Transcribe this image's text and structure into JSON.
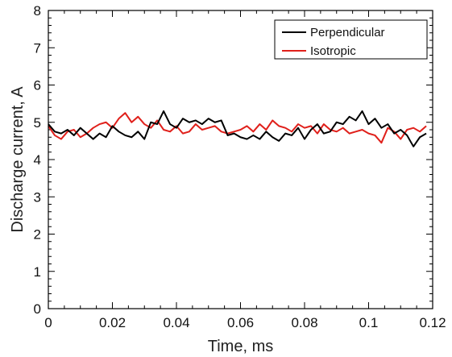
{
  "chart_data": {
    "type": "line",
    "xlabel": "Time, ms",
    "ylabel": "Discharge current, A",
    "xlim": [
      0,
      0.12
    ],
    "ylim": [
      0,
      8
    ],
    "x_ticks": [
      "0",
      "0.02",
      "0.04",
      "0.06",
      "0.08",
      "0.1",
      "0.12"
    ],
    "y_ticks": [
      "0",
      "1",
      "2",
      "3",
      "4",
      "5",
      "6",
      "7",
      "8"
    ],
    "grid": false,
    "legend_position": "top-right",
    "x": [
      0,
      0.002,
      0.004,
      0.006,
      0.008,
      0.01,
      0.012,
      0.014,
      0.016,
      0.018,
      0.02,
      0.022,
      0.024,
      0.026,
      0.028,
      0.03,
      0.032,
      0.034,
      0.036,
      0.038,
      0.04,
      0.042,
      0.044,
      0.046,
      0.048,
      0.05,
      0.052,
      0.054,
      0.056,
      0.058,
      0.06,
      0.062,
      0.064,
      0.066,
      0.068,
      0.07,
      0.072,
      0.074,
      0.076,
      0.078,
      0.08,
      0.082,
      0.084,
      0.086,
      0.088,
      0.09,
      0.092,
      0.094,
      0.096,
      0.098,
      0.1,
      0.102,
      0.104,
      0.106,
      0.108,
      0.11,
      0.112,
      0.114,
      0.116,
      0.118
    ],
    "series": [
      {
        "name": "Perpendicular",
        "color": "#000000",
        "values": [
          4.95,
          4.75,
          4.7,
          4.8,
          4.65,
          4.85,
          4.7,
          4.55,
          4.7,
          4.6,
          4.9,
          4.75,
          4.65,
          4.6,
          4.75,
          4.55,
          5.0,
          4.95,
          5.3,
          4.95,
          4.85,
          5.1,
          5.0,
          5.05,
          4.95,
          5.1,
          5.0,
          5.05,
          4.65,
          4.7,
          4.6,
          4.55,
          4.65,
          4.55,
          4.75,
          4.6,
          4.5,
          4.7,
          4.65,
          4.85,
          4.55,
          4.8,
          4.95,
          4.7,
          4.75,
          5.0,
          4.95,
          5.15,
          5.05,
          5.3,
          4.95,
          5.1,
          4.85,
          4.95,
          4.7,
          4.8,
          4.65,
          4.35,
          4.6,
          4.7
        ]
      },
      {
        "name": "Isotropic",
        "color": "#e0201b",
        "values": [
          4.9,
          4.65,
          4.55,
          4.75,
          4.8,
          4.6,
          4.7,
          4.85,
          4.95,
          5.0,
          4.85,
          5.1,
          5.25,
          5.0,
          5.15,
          4.95,
          4.85,
          5.05,
          4.8,
          4.75,
          4.9,
          4.7,
          4.75,
          4.95,
          4.8,
          4.85,
          4.9,
          4.75,
          4.7,
          4.75,
          4.8,
          4.9,
          4.75,
          4.95,
          4.8,
          5.05,
          4.9,
          4.85,
          4.75,
          4.95,
          4.85,
          4.9,
          4.7,
          4.95,
          4.8,
          4.75,
          4.85,
          4.7,
          4.75,
          4.8,
          4.7,
          4.65,
          4.45,
          4.85,
          4.75,
          4.55,
          4.8,
          4.85,
          4.75,
          4.9
        ]
      }
    ]
  }
}
